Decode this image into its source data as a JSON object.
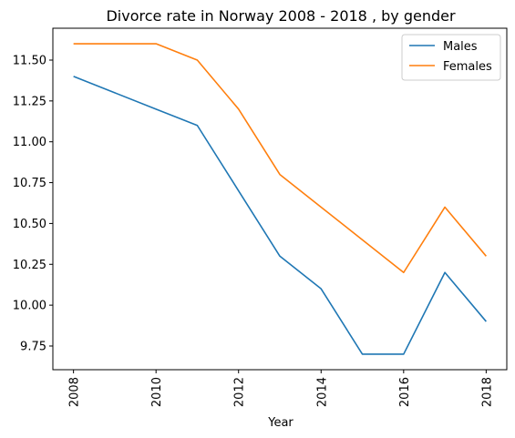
{
  "chart_data": {
    "type": "line",
    "title": "Divorce rate in Norway 2008 - 2018 , by gender",
    "xlabel": "Year",
    "ylabel": "",
    "x": [
      2008,
      2009,
      2010,
      2011,
      2012,
      2013,
      2014,
      2015,
      2016,
      2017,
      2018
    ],
    "series": [
      {
        "name": "Males",
        "color": "#1f77b4",
        "values": [
          11.4,
          11.3,
          11.2,
          11.1,
          10.7,
          10.3,
          10.1,
          9.7,
          9.7,
          10.2,
          9.9
        ]
      },
      {
        "name": "Females",
        "color": "#ff7f0e",
        "values": [
          11.6,
          11.6,
          11.6,
          11.5,
          11.2,
          10.8,
          10.6,
          10.4,
          10.2,
          10.6,
          10.3
        ]
      }
    ],
    "xticks": [
      2008,
      2010,
      2012,
      2014,
      2016,
      2018
    ],
    "yticks": [
      "9.75",
      "10.00",
      "10.25",
      "10.50",
      "10.75",
      "11.00",
      "11.25",
      "11.50"
    ],
    "xlim": [
      2007.5,
      2018.5
    ],
    "ylim": [
      9.605,
      11.695
    ],
    "legend_position": "top-right",
    "grid": false
  }
}
